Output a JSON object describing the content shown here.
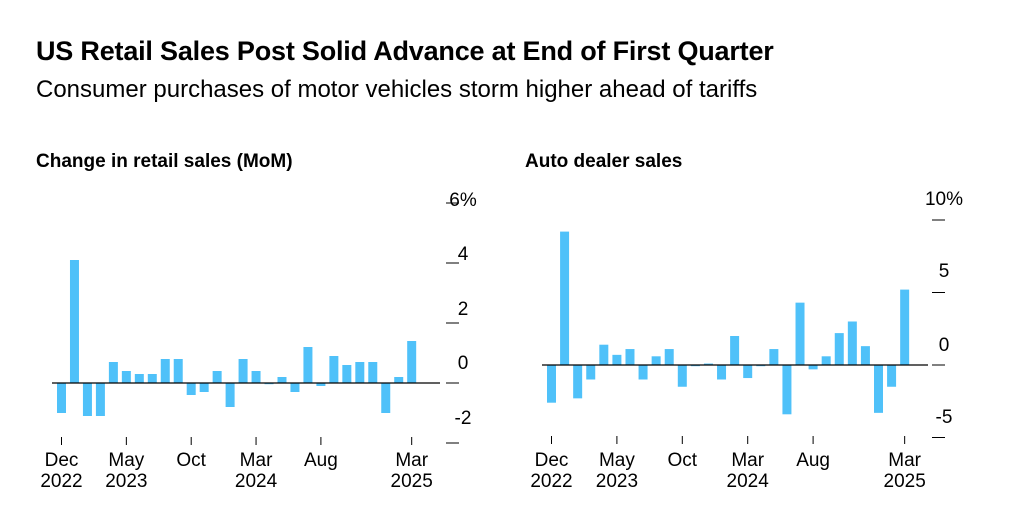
{
  "title": "US Retail Sales Post Solid Advance at End of First Quarter",
  "subtitle": "Consumer purchases of motor vehicles storm higher ahead of tariffs",
  "colors": {
    "bar": "#4FC1F9",
    "axis": "#000000"
  },
  "chart_data": [
    {
      "type": "bar",
      "title": "Change in retail sales (MoM)",
      "x_ticks": [
        {
          "index": 0,
          "line1": "Dec",
          "line2": "2022"
        },
        {
          "index": 5,
          "line1": "May",
          "line2": "2023"
        },
        {
          "index": 10,
          "line1": "Oct",
          "line2": ""
        },
        {
          "index": 15,
          "line1": "Mar",
          "line2": "2024"
        },
        {
          "index": 20,
          "line1": "Aug",
          "line2": ""
        },
        {
          "index": 27,
          "line1": "Mar",
          "line2": "2025"
        }
      ],
      "y_ticks": [
        "6%",
        "4",
        "2",
        "0",
        "-2"
      ],
      "ylim": [
        -2,
        6
      ],
      "categories": [
        "Dec 2022",
        "Jan 2023",
        "Feb 2023",
        "Mar 2023",
        "Apr 2023",
        "May 2023",
        "Jun 2023",
        "Jul 2023",
        "Aug 2023",
        "Sep 2023",
        "Oct 2023",
        "Nov 2023",
        "Dec 2023",
        "Jan 2024",
        "Feb 2024",
        "Mar 2024",
        "Apr 2024",
        "May 2024",
        "Jun 2024",
        "Jul 2024",
        "Aug 2024",
        "Sep 2024",
        "Oct 2024",
        "Nov 2024",
        "Dec 2024",
        "Jan 2025",
        "Feb 2025",
        "Mar 2025"
      ],
      "values": [
        -1.0,
        4.1,
        -1.1,
        -1.1,
        0.7,
        0.4,
        0.3,
        0.3,
        0.8,
        0.8,
        -0.4,
        -0.3,
        0.4,
        -0.8,
        0.8,
        0.4,
        0.0,
        0.2,
        -0.3,
        1.2,
        -0.1,
        0.9,
        0.6,
        0.7,
        0.7,
        -1.0,
        0.2,
        1.4
      ]
    },
    {
      "type": "bar",
      "title": "Auto dealer sales",
      "x_ticks": [
        {
          "index": 0,
          "line1": "Dec",
          "line2": "2022"
        },
        {
          "index": 5,
          "line1": "May",
          "line2": "2023"
        },
        {
          "index": 10,
          "line1": "Oct",
          "line2": ""
        },
        {
          "index": 15,
          "line1": "Mar",
          "line2": "2024"
        },
        {
          "index": 20,
          "line1": "Aug",
          "line2": ""
        },
        {
          "index": 27,
          "line1": "Mar",
          "line2": "2025"
        }
      ],
      "y_ticks": [
        "10%",
        "5",
        "0",
        "-5"
      ],
      "ylim": [
        -5,
        10
      ],
      "categories": [
        "Dec 2022",
        "Jan 2023",
        "Feb 2023",
        "Mar 2023",
        "Apr 2023",
        "May 2023",
        "Jun 2023",
        "Jul 2023",
        "Aug 2023",
        "Sep 2023",
        "Oct 2023",
        "Nov 2023",
        "Dec 2023",
        "Jan 2024",
        "Feb 2024",
        "Mar 2024",
        "Apr 2024",
        "May 2024",
        "Jun 2024",
        "Jul 2024",
        "Aug 2024",
        "Sep 2024",
        "Oct 2024",
        "Nov 2024",
        "Dec 2024",
        "Jan 2025",
        "Feb 2025",
        "Mar 2025"
      ],
      "values": [
        -2.6,
        9.2,
        -2.3,
        -1.0,
        1.4,
        0.7,
        1.1,
        -1.0,
        0.6,
        1.1,
        -1.5,
        0.0,
        0.1,
        -1.0,
        2.0,
        -0.9,
        0.0,
        1.1,
        -3.4,
        4.3,
        -0.3,
        0.6,
        2.2,
        3.0,
        1.3,
        -3.3,
        -1.5,
        5.2
      ]
    }
  ]
}
